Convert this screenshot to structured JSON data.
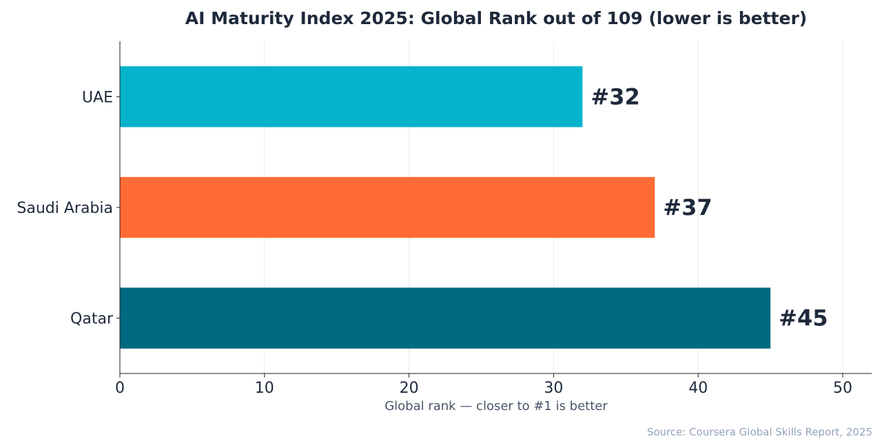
{
  "chart_data": {
    "type": "bar",
    "orientation": "horizontal",
    "title": "AI Maturity Index 2025: Global Rank out of 109 (lower is better)",
    "xlabel": "Global rank — closer to #1 is better",
    "ylabel": "",
    "categories": [
      "UAE",
      "Saudi Arabia",
      "Qatar"
    ],
    "values": [
      32,
      37,
      45
    ],
    "value_labels": [
      "#32",
      "#37",
      "#45"
    ],
    "colors": [
      "#06b3cc",
      "#ff6b35",
      "#006a80"
    ],
    "xlim": [
      0,
      52
    ],
    "xticks": [
      0,
      10,
      20,
      30,
      40,
      50
    ],
    "xtick_labels": [
      "0",
      "10",
      "20",
      "30",
      "40",
      "50"
    ],
    "grid": "vertical",
    "legend": "none"
  },
  "source": "Source: Coursera Global Skills Report, 2025"
}
